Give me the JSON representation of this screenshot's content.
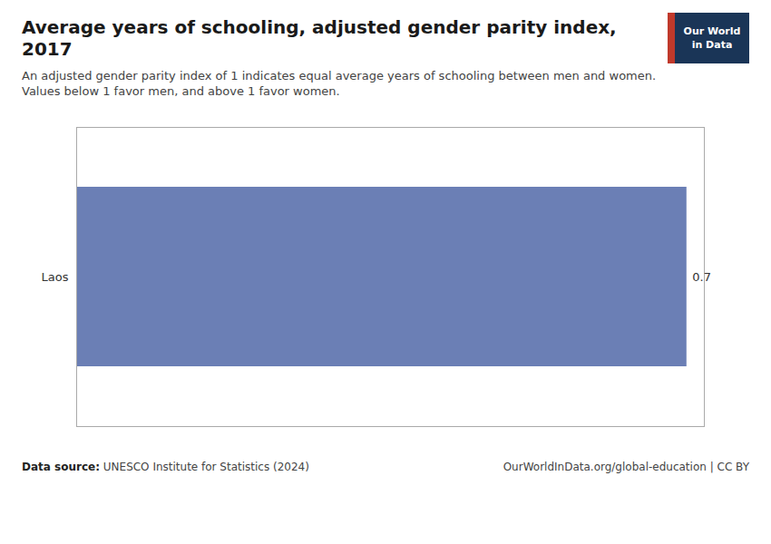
{
  "chart_data": {
    "type": "bar",
    "orientation": "horizontal",
    "title": "Average years of schooling, adjusted gender parity index, 2017",
    "subtitle": [
      "An adjusted gender parity index of 1 indicates equal average years of schooling between men and women.",
      "Values below 1 favor men, and above 1 favor women."
    ],
    "categories": [
      "Laos"
    ],
    "values": [
      0.7
    ],
    "color": "#6b7fb5",
    "xlim": [
      0,
      0.72
    ],
    "xticks": [],
    "tick_labels": "y",
    "grid": false,
    "data_labels": true,
    "annotations": [
      "Data source:",
      "UNESCO Institute for Statistics (2024)",
      "OurWorldInData.org/global-education | CC BY",
      "Our World",
      "in Data"
    ]
  }
}
